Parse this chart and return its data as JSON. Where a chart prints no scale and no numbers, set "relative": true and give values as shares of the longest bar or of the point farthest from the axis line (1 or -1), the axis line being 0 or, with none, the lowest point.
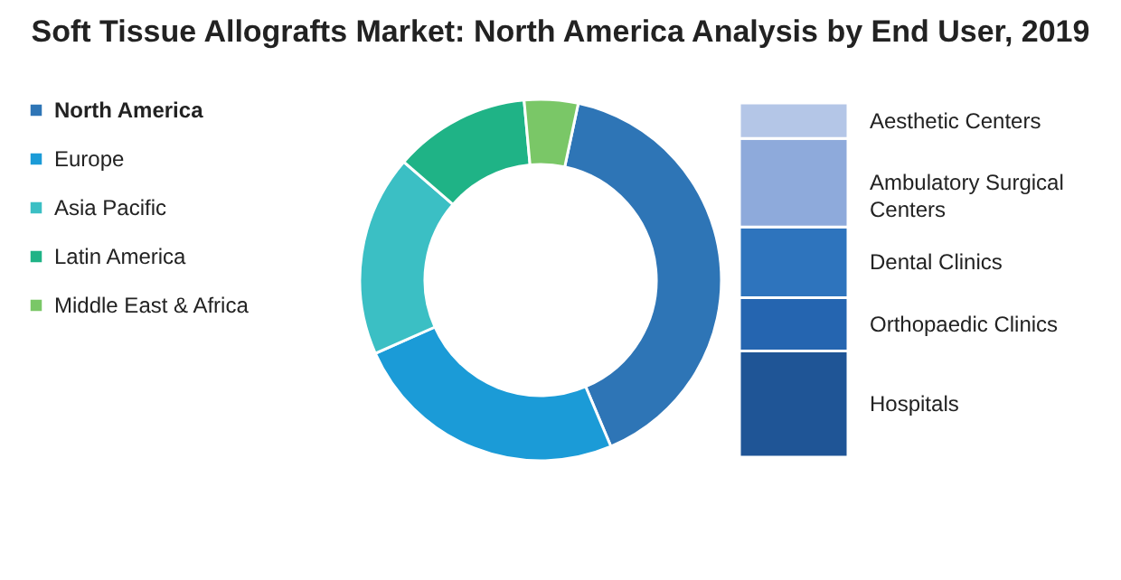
{
  "chart_data": [
    {
      "type": "donut",
      "title": "Soft Tissue Allografts Market: North America Analysis by End User, 2019",
      "categories": [
        "North America",
        "Europe",
        "Asia Pacific",
        "Latin America",
        "Middle East & Africa"
      ],
      "values": [
        40.3,
        24.7,
        18.0,
        12.2,
        4.8
      ],
      "colors": [
        "#2e75b6",
        "#1b9bd7",
        "#3bbfc4",
        "#1fb386",
        "#7ac767"
      ],
      "legend": "left"
    },
    {
      "type": "bar",
      "stacked": true,
      "relative": true,
      "categories": [
        null
      ],
      "series": [
        {
          "name": "Hospitals",
          "color": "#1f5596",
          "values": [
            0.3
          ]
        },
        {
          "name": "Orthopaedic Clinics",
          "color": "#2565b0",
          "values": [
            0.15
          ]
        },
        {
          "name": "Dental Clinics",
          "color": "#2e74bd",
          "values": [
            0.2
          ]
        },
        {
          "name": "Ambulatory Surgical Centers",
          "color": "#8eaadb",
          "values": [
            0.25
          ]
        },
        {
          "name": "Aesthetic Centers",
          "color": "#b4c6e7",
          "values": [
            0.1
          ]
        }
      ]
    }
  ]
}
